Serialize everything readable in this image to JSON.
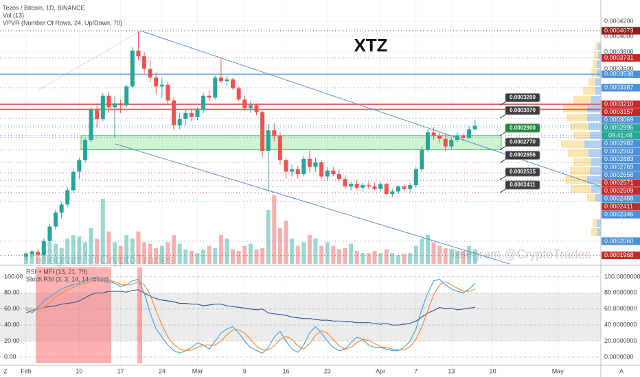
{
  "header": {
    "title": "Tezos / Bitcoin, 1D, BINANCE",
    "volume_label": "Vol (13)",
    "profile_label": "VPVR (Number Of Rows, 24, Up/Down, 70)",
    "watermark": "Telegram @CryptoTrades",
    "corner_left": "Z",
    "corner_right": "A"
  },
  "chart_data": [
    {
      "type": "candlestick",
      "annotation": "XTZ",
      "up_color": "#26a69a",
      "down_color": "#ef5350",
      "log_scale": true,
      "xlim": [
        -0.93,
        97.3
      ],
      "ylim": [
        0.0001914,
        0.00045
      ],
      "yticks": [
        {
          "value": 0.00042,
          "label": "0.0004200"
        },
        {
          "value": 0.0004,
          "label": "0.0004000"
        },
        {
          "value": 0.00038,
          "label": "0.0003800"
        },
        {
          "value": 0.00036,
          "label": "0.0003600"
        }
      ],
      "open": [
        0.000196,
        0.0001975,
        0.000199,
        0.000197,
        0.000206,
        0.000216,
        0.000226,
        0.000232,
        0.000243,
        0.000258,
        0.000268,
        0.000286,
        0.000315,
        0.000306,
        0.00033,
        0.000318,
        0.000322,
        0.00032,
        0.00034,
        0.000382,
        0.000375,
        0.00036,
        0.00035,
        0.00034,
        0.000342,
        0.000325,
        0.0003,
        0.000306,
        0.000312,
        0.000308,
        0.000315,
        0.00033,
        0.000328,
        0.00035,
        0.000346,
        0.000348,
        0.000338,
        0.000326,
        0.000317,
        0.00032,
        0.000313,
        0.000276,
        0.000295,
        0.00029,
        0.000268,
        0.000258,
        0.00026,
        0.000256,
        0.000269,
        0.000262,
        0.000266,
        0.000254,
        0.000259,
        0.000256,
        0.000252,
        0.000246,
        0.000248,
        0.000245,
        0.000247,
        0.000246,
        0.000244,
        0.000248,
        0.00024,
        0.000242,
        0.000246,
        0.000244,
        0.000247,
        0.00026,
        0.000277,
        0.000293,
        0.00029,
        0.000287,
        0.00028,
        0.000286,
        0.00029,
        0.000288,
        0.000296
      ],
      "high": [
        0.000199,
        0.0002,
        0.000201,
        0.000208,
        0.000218,
        0.000228,
        0.000234,
        0.000245,
        0.00026,
        0.00027,
        0.000288,
        0.000318,
        0.00032,
        0.000333,
        0.000334,
        0.00033,
        0.000326,
        0.000342,
        0.000386,
        0.0004073,
        0.00038,
        0.00037,
        0.000356,
        0.00035,
        0.000345,
        0.000328,
        0.000312,
        0.000315,
        0.000316,
        0.000318,
        0.000333,
        0.000336,
        0.000352,
        0.0003731,
        0.000352,
        0.00035,
        0.00034,
        0.00033,
        0.000325,
        0.000322,
        0.000315,
        0.000301,
        0.000302,
        0.000293,
        0.00027,
        0.000264,
        0.000263,
        0.000272,
        0.000276,
        0.00027,
        0.000268,
        0.000262,
        0.000262,
        0.00026,
        0.000255,
        0.00025,
        0.000251,
        0.000249,
        0.00025,
        0.000249,
        0.00025,
        0.000249,
        0.000244,
        0.000247,
        0.000248,
        0.000249,
        0.000262,
        0.00028,
        0.000296,
        0.000298,
        0.000294,
        0.000292,
        0.000288,
        0.000293,
        0.000292,
        0.000299,
        0.000305
      ],
      "low": [
        0.000194,
        0.000195,
        0.000196,
        0.000196,
        0.000205,
        0.000214,
        0.000222,
        0.00023,
        0.000241,
        0.000252,
        0.000266,
        0.000284,
        0.000298,
        0.000304,
        0.000312,
        0.000288,
        0.000312,
        0.000318,
        0.000338,
        0.00037,
        0.000355,
        0.000345,
        0.000332,
        0.000328,
        0.00032,
        0.000295,
        0.000296,
        0.0003,
        0.000304,
        0.000305,
        0.000312,
        0.000325,
        0.000326,
        0.000344,
        0.00034,
        0.000336,
        0.000324,
        0.000314,
        0.000312,
        0.00031,
        0.00027,
        0.000242,
        0.000285,
        0.000264,
        0.000252,
        0.000254,
        0.000252,
        0.000254,
        0.000258,
        0.000258,
        0.000252,
        0.000251,
        0.000254,
        0.00025,
        0.000244,
        0.000243,
        0.000243,
        0.000242,
        0.000244,
        0.000243,
        0.000242,
        0.000239,
        0.000238,
        0.00024,
        0.000242,
        0.0002411,
        0.000245,
        0.000258,
        0.000275,
        0.000286,
        0.000284,
        0.000276,
        0.000278,
        0.000284,
        0.000285,
        0.000287,
        0.000295
      ],
      "close": [
        0.0001975,
        0.000199,
        0.000197,
        0.000206,
        0.000216,
        0.000226,
        0.000232,
        0.000243,
        0.000258,
        0.000268,
        0.000286,
        0.000315,
        0.000306,
        0.00033,
        0.000318,
        0.000322,
        0.00032,
        0.00034,
        0.000382,
        0.000375,
        0.00036,
        0.00035,
        0.00034,
        0.000342,
        0.000325,
        0.0003,
        0.000306,
        0.000312,
        0.000308,
        0.000315,
        0.00033,
        0.000328,
        0.00035,
        0.000346,
        0.000348,
        0.000338,
        0.000326,
        0.000317,
        0.00032,
        0.000313,
        0.000276,
        0.000295,
        0.00029,
        0.000268,
        0.000258,
        0.00026,
        0.000256,
        0.000269,
        0.000262,
        0.000266,
        0.000254,
        0.000259,
        0.000256,
        0.000252,
        0.000246,
        0.000248,
        0.000245,
        0.000247,
        0.000246,
        0.000244,
        0.000248,
        0.00024,
        0.000242,
        0.000246,
        0.000244,
        0.000247,
        0.00026,
        0.000277,
        0.000293,
        0.00029,
        0.000287,
        0.00028,
        0.000286,
        0.00029,
        0.000288,
        0.000296,
        0.0002995
      ],
      "volume": [
        15,
        18,
        10,
        25,
        30,
        28,
        22,
        35,
        40,
        38,
        30,
        50,
        35,
        90,
        45,
        30,
        25,
        40,
        35,
        45,
        30,
        28,
        22,
        25,
        30,
        40,
        28,
        20,
        18,
        15,
        20,
        25,
        22,
        40,
        35,
        20,
        18,
        25,
        28,
        20,
        22,
        75,
        95,
        50,
        60,
        35,
        25,
        30,
        40,
        35,
        25,
        30,
        25,
        20,
        22,
        28,
        18,
        15,
        15,
        18,
        15,
        20,
        15,
        12,
        14,
        15,
        25,
        35,
        40,
        30,
        25,
        22,
        20,
        18,
        18,
        25,
        20
      ],
      "levels": [
        {
          "value": 0.0004073,
          "label": "0.0004073",
          "color": "#8e1b1b",
          "style": "dotted"
        },
        {
          "value": 0.0003731,
          "label": "0.0003731",
          "color": "#c62828",
          "style": "dotted"
        },
        {
          "value": 0.0003538,
          "label": "0.0003538",
          "color": "#4a90d9",
          "style": "solid"
        },
        {
          "value": 0.0003387,
          "label": "0.0003387",
          "color": "#4a90d9",
          "style": "dotted"
        },
        {
          "value": 0.000321,
          "label": "0.0003210",
          "color": "#c62828",
          "style": "solid"
        },
        {
          "value": 0.0003157,
          "label": "0.0003157",
          "color": "#c62828",
          "style": "solid"
        },
        {
          "value": 0.0003069,
          "label": "0.0003069",
          "color": "#4a90d9",
          "style": "dotted"
        },
        {
          "value": 0.0002995,
          "label": "0.0002995",
          "color": "#26a69a",
          "style": "dotted",
          "countdown": "09:41:46"
        },
        {
          "value": 0.0002982,
          "label": "0.0002982",
          "color": "#4a90d9",
          "style": "dotted"
        },
        {
          "value": 0.0002903,
          "label": "0.0002903",
          "color": "#4a90d9",
          "style": "dotted"
        },
        {
          "value": 0.0002883,
          "label": "0.0002883",
          "color": "#4a90d9",
          "style": "dotted"
        },
        {
          "value": 0.0002769,
          "label": "0.0002769",
          "color": "#4a90d9",
          "style": "dotted"
        },
        {
          "value": 0.0002658,
          "label": "0.0002658",
          "color": "#4a90d9",
          "style": "dotted"
        },
        {
          "value": 0.0002571,
          "label": "0.0002571",
          "color": "#c62828",
          "style": "dotted"
        },
        {
          "value": 0.0002509,
          "label": "0.0002509",
          "color": "#c62828",
          "style": "dotted"
        },
        {
          "value": 0.0002458,
          "label": "0.0002458",
          "color": "#4a90d9",
          "style": "dotted"
        },
        {
          "value": 0.0002411,
          "label": "0.0002411",
          "color": "#c62828",
          "style": "dotted"
        },
        {
          "value": 0.0002346,
          "label": "0.0002346",
          "color": "#4a90d9",
          "style": "dotted"
        },
        {
          "value": 0.000206,
          "label": "0.0002060",
          "color": "#4a90d9",
          "style": "dotted"
        },
        {
          "value": 0.0001968,
          "label": "0.0001968",
          "color": "#c62828",
          "style": "dotted"
        }
      ],
      "callouts": [
        {
          "value": 0.00032,
          "label": "0.0003200",
          "color": "#3c3c3c"
        },
        {
          "value": 0.000307,
          "label": "0.0003070",
          "color": "#3c3c3c"
        },
        {
          "value": 0.00029,
          "label": "0.0002900",
          "color": "#1b8a3a"
        },
        {
          "value": 0.000277,
          "label": "0.0002770",
          "color": "#3c3c3c"
        },
        {
          "value": 0.0002656,
          "label": "0.0002656",
          "color": "#3c3c3c"
        },
        {
          "value": 0.0002515,
          "label": "0.0002515",
          "color": "#3c3c3c"
        },
        {
          "value": 0.0002411,
          "label": "0.0002411",
          "color": "#3c3c3c"
        }
      ]
    },
    {
      "type": "line",
      "xlim": [
        -0.93,
        97.3
      ],
      "ylim": [
        -7.7,
        111.9
      ],
      "yticks": [
        {
          "value": 100,
          "label": "100.0000000",
          "inner_label": "100.00"
        },
        {
          "value": 80,
          "label": "80.0000000",
          "inner_label": "80.00"
        },
        {
          "value": 60,
          "label": "60.0000000",
          "inner_label": "60.00"
        },
        {
          "value": 40,
          "label": "40.0000000",
          "inner_label": "40.00"
        },
        {
          "value": 20,
          "label": "20.0000000",
          "inner_label": "20.00"
        },
        {
          "value": 0,
          "label": "0.0000000",
          "inner_label": "0.00"
        }
      ],
      "xticks": [
        {
          "value": 0,
          "label": "Feb"
        },
        {
          "value": 9,
          "label": "10"
        },
        {
          "value": 16,
          "label": "17"
        },
        {
          "value": 23,
          "label": "24"
        },
        {
          "value": 29,
          "label": "Mar"
        },
        {
          "value": 37,
          "label": "9"
        },
        {
          "value": 44,
          "label": "16"
        },
        {
          "value": 51,
          "label": "23"
        },
        {
          "value": 60,
          "label": "Apr"
        },
        {
          "value": 66,
          "label": "7"
        },
        {
          "value": 72,
          "label": "13"
        },
        {
          "value": 79,
          "label": "20"
        },
        {
          "value": 90,
          "label": "May"
        }
      ],
      "indicators": [
        {
          "title": "RSI + MFI (13, 21, 79)",
          "series": [
            {
              "color": "#3a5a9c",
              "values": [
                55,
                58,
                60,
                62,
                63,
                64,
                66,
                67,
                68,
                70,
                74,
                78,
                80,
                80,
                82,
                82,
                82,
                81,
                83,
                84,
                80,
                76,
                73,
                71,
                70,
                69,
                67,
                67,
                66,
                66,
                64,
                65,
                66,
                66,
                64,
                63,
                62,
                61,
                60,
                59,
                60,
                55,
                54,
                53,
                52,
                50,
                49,
                48,
                48,
                47,
                46,
                46,
                45,
                45,
                44,
                44,
                43,
                43,
                43,
                42,
                41,
                42,
                40,
                40,
                41,
                42,
                45,
                50,
                55,
                58,
                62,
                60,
                61,
                59,
                60,
                61,
                62
              ]
            }
          ]
        },
        {
          "title": "Stoch RSI (3, 3, 14, 14, close)",
          "series": [
            {
              "color": "#4aa3df",
              "values": [
                60,
                55,
                62,
                70,
                75,
                80,
                85,
                88,
                90,
                92,
                95,
                98,
                100,
                96,
                94,
                92,
                88,
                90,
                95,
                97,
                80,
                55,
                35,
                25,
                15,
                8,
                5,
                8,
                12,
                18,
                15,
                10,
                20,
                30,
                35,
                38,
                30,
                20,
                12,
                8,
                5,
                12,
                25,
                32,
                20,
                10,
                6,
                15,
                30,
                38,
                30,
                20,
                12,
                8,
                10,
                18,
                25,
                22,
                15,
                12,
                12,
                10,
                8,
                8,
                12,
                20,
                35,
                60,
                80,
                95,
                97,
                90,
                85,
                82,
                80,
                85,
                92
              ]
            },
            {
              "color": "#f5893a",
              "values": [
                62,
                60,
                60,
                62,
                68,
                75,
                80,
                84,
                87,
                90,
                92,
                95,
                97,
                97,
                96,
                94,
                91,
                90,
                91,
                94,
                90,
                78,
                58,
                40,
                25,
                16,
                10,
                8,
                9,
                12,
                15,
                15,
                15,
                20,
                28,
                34,
                34,
                30,
                22,
                14,
                9,
                9,
                14,
                22,
                26,
                22,
                14,
                10,
                17,
                27,
                33,
                30,
                22,
                14,
                10,
                12,
                18,
                22,
                21,
                17,
                13,
                12,
                10,
                9,
                9,
                13,
                22,
                38,
                58,
                78,
                90,
                94,
                90,
                86,
                82,
                82,
                85
              ]
            }
          ]
        }
      ]
    }
  ]
}
